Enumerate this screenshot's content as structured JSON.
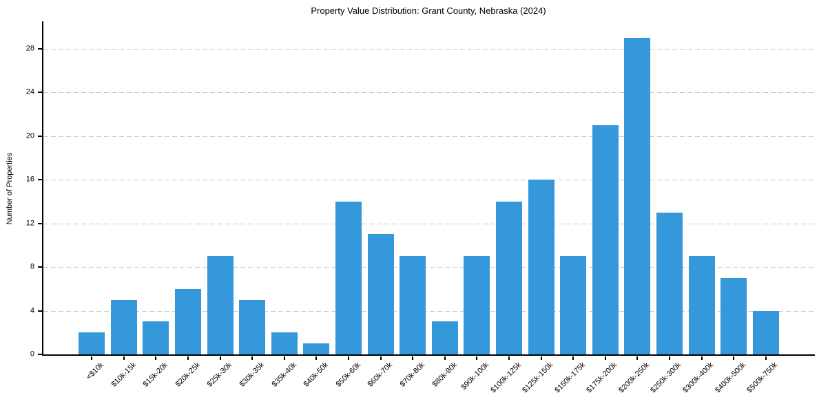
{
  "chart_data": {
    "type": "bar",
    "title": "Property Value Distribution: Grant County, Nebraska (2024)",
    "xlabel": "",
    "ylabel": "Number of Properties",
    "categories": [
      "<$10k",
      "$10k-15k",
      "$15k-20k",
      "$20k-25k",
      "$25k-30k",
      "$30k-35k",
      "$35k-40k",
      "$40k-50k",
      "$50k-60k",
      "$60k-70k",
      "$70k-80k",
      "$80k-90k",
      "$90k-100k",
      "$100k-125k",
      "$125k-150k",
      "$150k-175k",
      "$175k-200k",
      "$200k-250k",
      "$250k-300k",
      "$300k-400k",
      "$400k-500k",
      "$500k-750k"
    ],
    "values": [
      2,
      5,
      3,
      6,
      9,
      5,
      2,
      1,
      14,
      11,
      9,
      3,
      9,
      14,
      16,
      9,
      21,
      29,
      13,
      9,
      7,
      4
    ],
    "ylim": [
      0,
      30.5
    ],
    "yticks": [
      0,
      4,
      8,
      12,
      16,
      20,
      24,
      28
    ],
    "grid": "horizontal-dashed",
    "legend": "none",
    "bar_color": "#3498db",
    "grid_color": "#c9c9c9",
    "axis_color": "#000000"
  }
}
